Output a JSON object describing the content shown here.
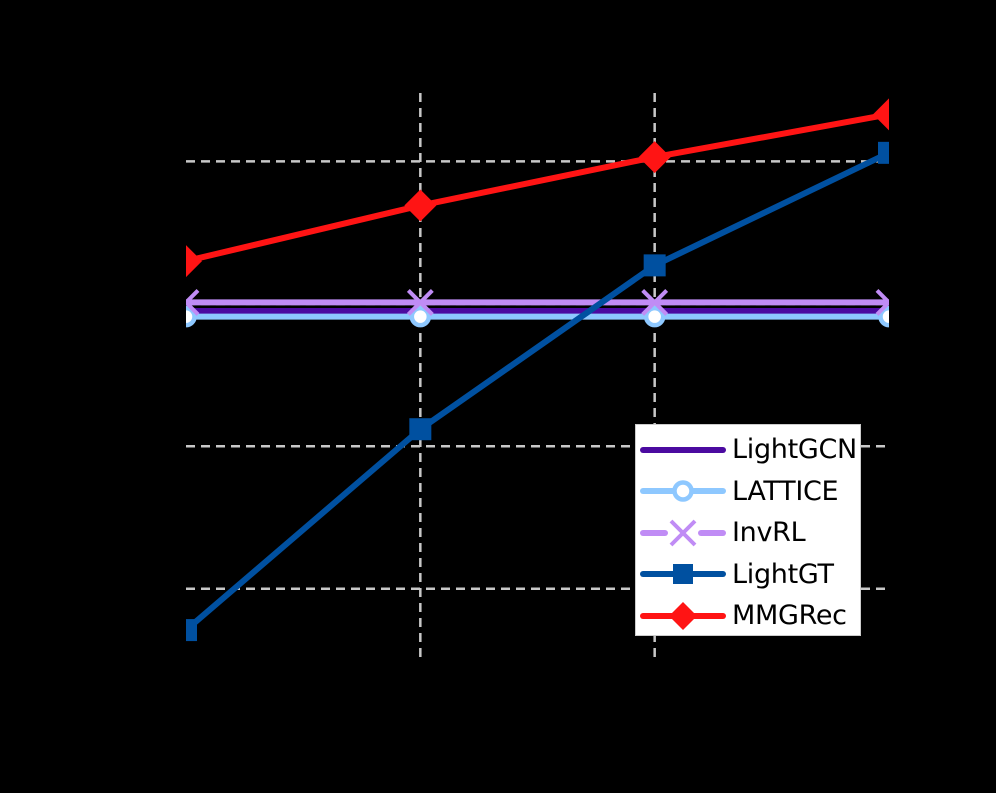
{
  "chart_data": {
    "type": "line",
    "title": "",
    "xlabel": "",
    "ylabel": "",
    "x": [
      1,
      2,
      3,
      4
    ],
    "xlim": [
      1,
      4
    ],
    "ylim": [
      0.5,
      4.48
    ],
    "grid": true,
    "grid_style": "dashed",
    "x_grid_positions": [
      2,
      3
    ],
    "y_grid_positions": [
      1,
      2,
      3,
      4
    ],
    "legend_position": "lower right",
    "series": [
      {
        "name": "LightGCN",
        "color": "#4b0aa0",
        "marker": "none",
        "values": [
          2.95,
          2.95,
          2.95,
          2.95
        ]
      },
      {
        "name": "LATTICE",
        "color": "#8ec8ff",
        "marker": "circle",
        "values": [
          2.91,
          2.91,
          2.91,
          2.91
        ]
      },
      {
        "name": "InvRL",
        "color": "#c08cf5",
        "marker": "x",
        "values": [
          3.01,
          3.01,
          3.01,
          3.01
        ]
      },
      {
        "name": "LightGT",
        "color": "#0050a0",
        "marker": "square",
        "values": [
          0.71,
          2.12,
          3.27,
          4.06
        ]
      },
      {
        "name": "MMGRec",
        "color": "#ff1414",
        "marker": "diamond",
        "values": [
          3.3,
          3.69,
          4.03,
          4.33
        ]
      }
    ]
  },
  "colors": {
    "background": "#000000",
    "grid": "#c8c8c8",
    "legend_bg": "#ffffff",
    "legend_border": "#cccccc"
  },
  "legend": {
    "items": [
      {
        "label": "LightGCN"
      },
      {
        "label": "LATTICE"
      },
      {
        "label": "InvRL"
      },
      {
        "label": "LightGT"
      },
      {
        "label": "MMGRec"
      }
    ]
  }
}
